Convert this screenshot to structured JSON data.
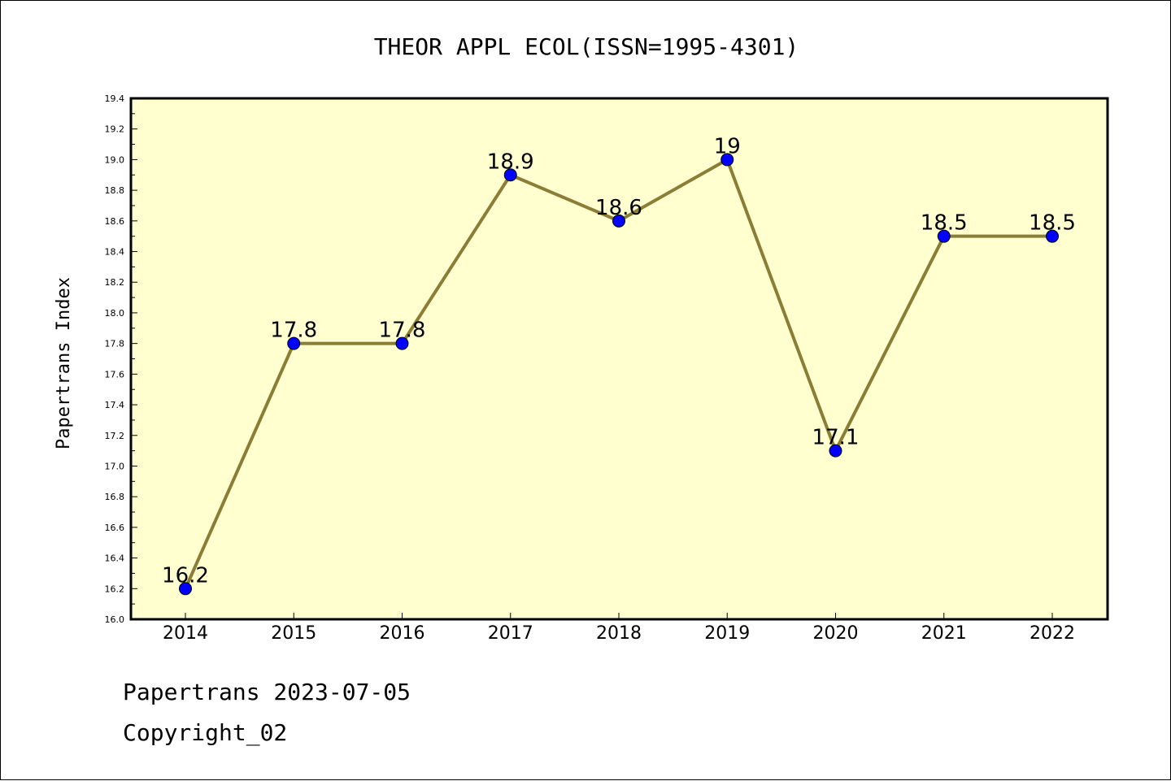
{
  "chart_data": {
    "type": "line",
    "title": "THEOR APPL ECOL(ISSN=1995-4301)",
    "xlabel": "",
    "ylabel": "Papertrans Index",
    "categories": [
      "2014",
      "2015",
      "2016",
      "2017",
      "2018",
      "2019",
      "2020",
      "2021",
      "2022"
    ],
    "values": [
      16.2,
      17.8,
      17.8,
      18.9,
      18.6,
      19,
      17.1,
      18.5,
      18.5
    ],
    "data_labels": [
      "16.2",
      "17.8",
      "17.8",
      "18.9",
      "18.6",
      "19",
      "17.1",
      "18.5",
      "18.5"
    ],
    "ylim": [
      16.0,
      19.4
    ],
    "yticks": [
      "16.0",
      "16.2",
      "16.4",
      "16.6",
      "16.8",
      "17.0",
      "17.2",
      "17.4",
      "17.6",
      "17.8",
      "18.0",
      "18.2",
      "18.4",
      "18.6",
      "18.8",
      "19.0",
      "19.2",
      "19.4"
    ],
    "grid": false,
    "legend": "none",
    "colors": {
      "plot_background": "#ffffd0",
      "line": "#8b7d35",
      "marker": "#0000ff"
    }
  },
  "footer": {
    "line1": "Papertrans 2023-07-05",
    "line2": "Copyright_02"
  }
}
